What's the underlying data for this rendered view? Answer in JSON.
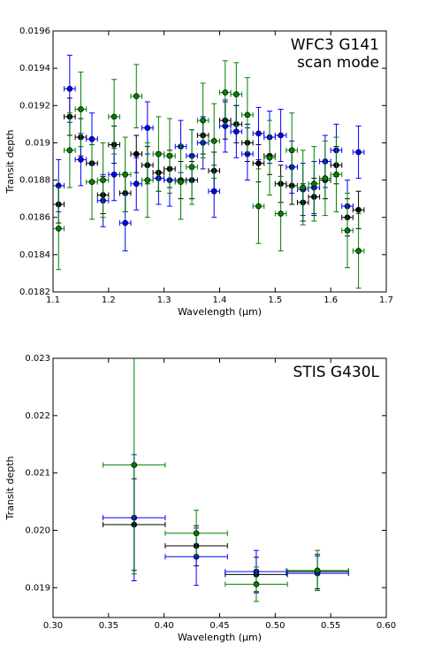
{
  "chart_data": [
    {
      "type": "scatter",
      "annotation": [
        "WFC3 G141",
        "scan mode"
      ],
      "xlabel": "Wavelength (μm)",
      "ylabel": "Transit depth",
      "x": [
        1.11,
        1.13,
        1.15,
        1.17,
        1.19,
        1.21,
        1.23,
        1.25,
        1.27,
        1.29,
        1.31,
        1.33,
        1.35,
        1.37,
        1.39,
        1.41,
        1.43,
        1.45,
        1.47,
        1.49,
        1.51,
        1.53,
        1.55,
        1.57,
        1.59,
        1.61,
        1.63,
        1.65
      ],
      "x_error": 0.01,
      "xlim": [
        1.1,
        1.7
      ],
      "xticks": [
        1.1,
        1.2,
        1.3,
        1.4,
        1.5,
        1.6,
        1.7
      ],
      "ylim": [
        0.0182,
        0.0196
      ],
      "yticks": [
        0.0182,
        0.0184,
        0.0186,
        0.0188,
        0.019,
        0.0192,
        0.0194,
        0.0196
      ],
      "series": [
        {
          "color": "#000000",
          "values": [
            0.01867,
            0.01914,
            0.01903,
            0.01889,
            0.01872,
            0.01899,
            0.01873,
            0.01894,
            0.01888,
            0.01884,
            0.01886,
            0.0188,
            0.0188,
            0.01904,
            0.01885,
            0.01912,
            0.0191,
            0.019,
            0.01889,
            0.01893,
            0.01878,
            0.01877,
            0.01868,
            0.01871,
            0.0188,
            0.01888,
            0.0186,
            0.01864
          ],
          "errors": [
            0.0001,
            0.0001,
            0.0001,
            0.0001,
            0.0001,
            0.0001,
            0.0001,
            0.0001,
            0.0001,
            0.0001,
            0.0001,
            0.0001,
            0.0001,
            0.0001,
            0.0001,
            0.0001,
            0.0001,
            0.0001,
            0.0001,
            0.0001,
            0.0001,
            0.0001,
            0.0001,
            0.0001,
            0.0001,
            0.0001,
            0.0001,
            0.0001
          ]
        },
        {
          "color": "#0000ff",
          "values": [
            0.01877,
            0.01929,
            0.01891,
            0.01902,
            0.01869,
            0.01883,
            0.01857,
            0.01878,
            0.01908,
            0.01881,
            0.0188,
            0.01898,
            0.01893,
            0.019,
            0.01874,
            0.01909,
            0.01906,
            0.01894,
            0.01905,
            0.01903,
            0.01904,
            0.01887,
            0.01875,
            0.01876,
            0.0189,
            0.01896,
            0.01866,
            0.01895
          ],
          "errors": [
            0.00014,
            0.00018,
            0.00014,
            0.00014,
            0.00014,
            0.00014,
            0.00015,
            0.00014,
            0.00014,
            0.00014,
            0.00014,
            0.00014,
            0.00014,
            0.00014,
            0.00014,
            0.00014,
            0.00014,
            0.00014,
            0.00014,
            0.00014,
            0.00014,
            0.00014,
            0.00014,
            0.00014,
            0.00014,
            0.00014,
            0.00014,
            0.00014
          ]
        },
        {
          "color": "#008000",
          "values": [
            0.01854,
            0.01896,
            0.01918,
            0.01879,
            0.0188,
            0.01914,
            0.01883,
            0.01925,
            0.0188,
            0.01894,
            0.01893,
            0.01879,
            0.01887,
            0.01912,
            0.01901,
            0.01927,
            0.01926,
            0.01915,
            0.01866,
            0.01892,
            0.01862,
            0.01896,
            0.01876,
            0.01878,
            0.01881,
            0.01883,
            0.01853,
            0.01842
          ],
          "errors": [
            0.00022,
            0.0002,
            0.0002,
            0.0002,
            0.0002,
            0.0002,
            0.0002,
            0.00017,
            0.0002,
            0.0002,
            0.0002,
            0.0002,
            0.0002,
            0.0002,
            0.0002,
            0.00017,
            0.00017,
            0.0002,
            0.0002,
            0.0002,
            0.0002,
            0.0002,
            0.0002,
            0.0002,
            0.0002,
            0.0002,
            0.0002,
            0.0002
          ]
        }
      ]
    },
    {
      "type": "scatter",
      "annotation": [
        "STIS G430L"
      ],
      "xlabel": "Wavelength (μm)",
      "ylabel": "Transit depth",
      "x": [
        0.373,
        0.429,
        0.483,
        0.538
      ],
      "x_error": 0.028,
      "xlim": [
        0.3,
        0.6
      ],
      "xticks": [
        {
          "value": 0.3,
          "label": "0.30"
        },
        0.35,
        {
          "value": 0.4,
          "label": "0.40"
        },
        0.45,
        {
          "value": 0.5,
          "label": "0.50"
        },
        0.55,
        {
          "value": 0.6,
          "label": "0.60"
        }
      ],
      "ylim": [
        0.01848,
        0.023
      ],
      "yticks": [
        0.019,
        {
          "value": 0.02,
          "label": "0.020"
        },
        0.021,
        0.022,
        0.023
      ],
      "series": [
        {
          "color": "#000000",
          "values": [
            0.0201,
            0.01973,
            0.01923,
            0.01928
          ],
          "errors": [
            0.0008,
            0.00035,
            0.0003,
            0.0003
          ]
        },
        {
          "color": "#0000ff",
          "values": [
            0.02022,
            0.01954,
            0.01928,
            0.01925
          ],
          "errors": [
            0.0011,
            0.0005,
            0.00037,
            0.0003
          ]
        },
        {
          "color": "#008000",
          "values": [
            0.02114,
            0.01995,
            0.01906,
            0.0193
          ],
          "errors": [
            0.0019,
            0.0004,
            0.0003,
            0.00035
          ]
        }
      ]
    }
  ]
}
